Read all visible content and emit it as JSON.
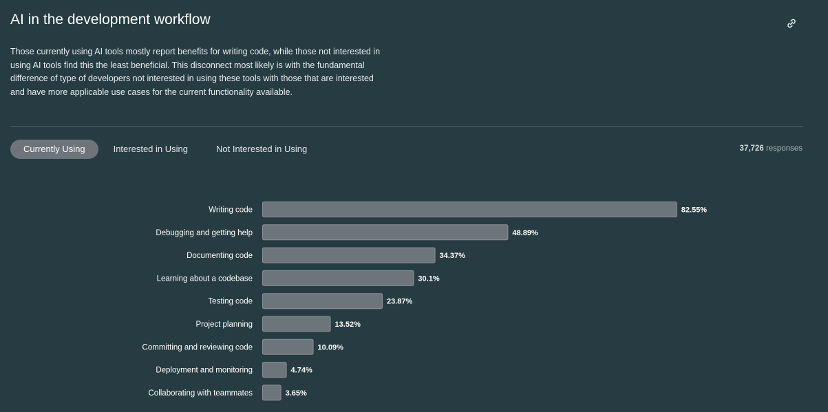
{
  "header": {
    "title": "AI in the development workflow",
    "description": "Those currently using AI tools mostly report benefits for writing code, while those not interested in using AI tools find this the least beneficial. This disconnect most likely is with the fundamental difference of type of developers not interested in using these tools with those that are interested and have more applicable use cases for the current functionality available.",
    "link_icon": "link-icon"
  },
  "tabs": [
    {
      "label": "Currently Using",
      "active": true
    },
    {
      "label": "Interested in Using",
      "active": false
    },
    {
      "label": "Not Interested in Using",
      "active": false
    }
  ],
  "responses": {
    "count": "37,726",
    "label": "responses"
  },
  "colors": {
    "background": "#263b42",
    "bar_fill": "#6d747c",
    "bar_stroke": "#8a9198",
    "active_tab": "#6d747c"
  },
  "chart_data": {
    "type": "bar",
    "orientation": "horizontal",
    "title": "AI in the development workflow",
    "xlabel": "",
    "ylabel": "",
    "xlim": [
      0,
      100
    ],
    "unit": "%",
    "categories": [
      "Writing code",
      "Debugging and getting help",
      "Documenting code",
      "Learning about a codebase",
      "Testing code",
      "Project planning",
      "Committing and reviewing code",
      "Deployment and monitoring",
      "Collaborating with teammates"
    ],
    "values": [
      82.55,
      48.89,
      34.37,
      30.1,
      23.87,
      13.52,
      10.09,
      4.74,
      3.65
    ],
    "value_labels": [
      "82.55%",
      "48.89%",
      "34.37%",
      "30.1%",
      "23.87%",
      "13.52%",
      "10.09%",
      "4.74%",
      "3.65%"
    ]
  }
}
